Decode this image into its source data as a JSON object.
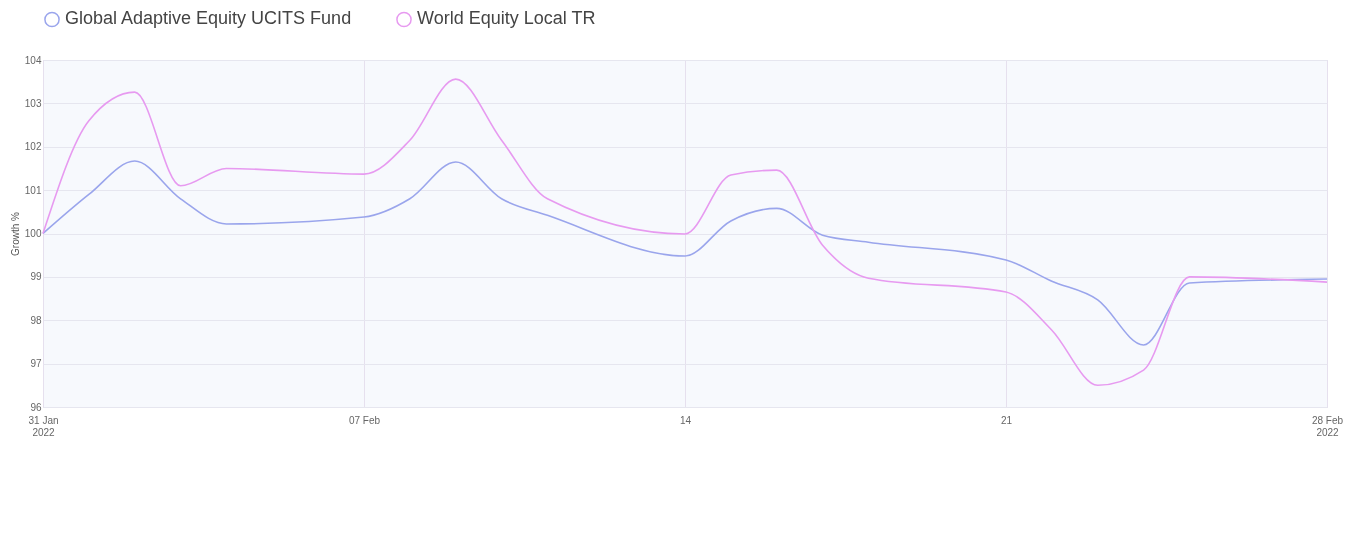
{
  "chart_data": {
    "type": "line",
    "ylabel": "Growth %",
    "x": [
      "2022-01-31",
      "2022-02-01",
      "2022-02-02",
      "2022-02-03",
      "2022-02-04",
      "2022-02-07",
      "2022-02-08",
      "2022-02-09",
      "2022-02-10",
      "2022-02-11",
      "2022-02-14",
      "2022-02-15",
      "2022-02-16",
      "2022-02-17",
      "2022-02-18",
      "2022-02-21",
      "2022-02-22",
      "2022-02-23",
      "2022-02-24",
      "2022-02-25",
      "2022-02-28"
    ],
    "series": [
      {
        "name": "Global Adaptive Equity UCITS Fund",
        "color": "#9aa5ec",
        "values": [
          100.0,
          100.9,
          101.67,
          100.8,
          100.22,
          100.38,
          100.8,
          101.65,
          100.8,
          100.42,
          99.48,
          100.29,
          100.58,
          99.96,
          99.8,
          99.39,
          98.9,
          98.47,
          97.43,
          98.86,
          98.95
        ]
      },
      {
        "name": "World Equity Local TR",
        "color": "#e79af0",
        "values": [
          100.0,
          102.6,
          103.26,
          101.1,
          101.5,
          101.37,
          102.15,
          103.56,
          102.15,
          100.8,
          99.99,
          101.35,
          101.46,
          99.73,
          98.97,
          98.65,
          97.77,
          96.5,
          96.85,
          99.0,
          98.88
        ]
      }
    ],
    "xlim": [
      "2022-01-31",
      "2022-02-28"
    ],
    "xticks": [
      {
        "value": "2022-01-31",
        "label": "31 Jan\n2022"
      },
      {
        "value": "2022-02-07",
        "label": "07 Feb"
      },
      {
        "value": "2022-02-14",
        "label": "14"
      },
      {
        "value": "2022-02-21",
        "label": "21"
      },
      {
        "value": "2022-02-28",
        "label": "28 Feb\n2022"
      }
    ],
    "ylim": [
      96,
      104
    ],
    "yticks": [
      96,
      97,
      98,
      99,
      100,
      101,
      102,
      103,
      104
    ],
    "grid": true,
    "legend": "top left",
    "marker": "none",
    "line_style": "solid"
  }
}
